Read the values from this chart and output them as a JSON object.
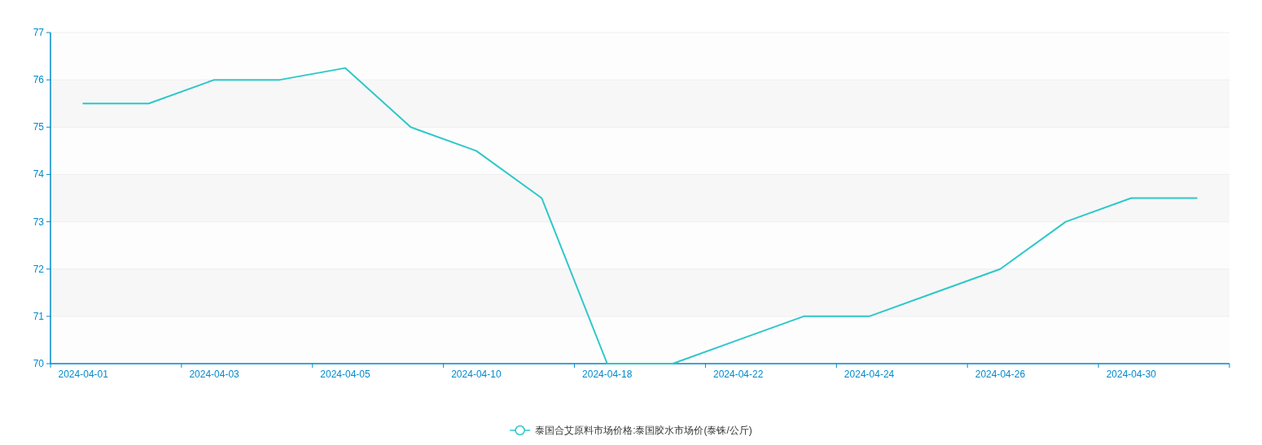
{
  "chart_data": {
    "type": "line",
    "categories": [
      "2024-04-01",
      null,
      "2024-04-03",
      null,
      "2024-04-05",
      null,
      "2024-04-10",
      null,
      "2024-04-18",
      null,
      "2024-04-22",
      null,
      "2024-04-24",
      null,
      "2024-04-26",
      null,
      "2024-04-30",
      null
    ],
    "series": [
      {
        "name": "泰国合艾原料市场价格:泰国胶水市场价(泰铢/公斤)",
        "color": "#2ec7c9",
        "values": [
          75.5,
          75.5,
          76,
          76,
          76.25,
          75,
          74.5,
          73.5,
          70,
          70,
          70.5,
          71,
          71,
          71.5,
          72,
          73,
          73.5,
          73.5
        ]
      }
    ],
    "ylim": [
      70,
      77
    ],
    "yticks": [
      70,
      71,
      72,
      73,
      74,
      75,
      76,
      77
    ],
    "grid": "y",
    "legend": "bottom",
    "marker": "none",
    "line_style": "solid"
  }
}
